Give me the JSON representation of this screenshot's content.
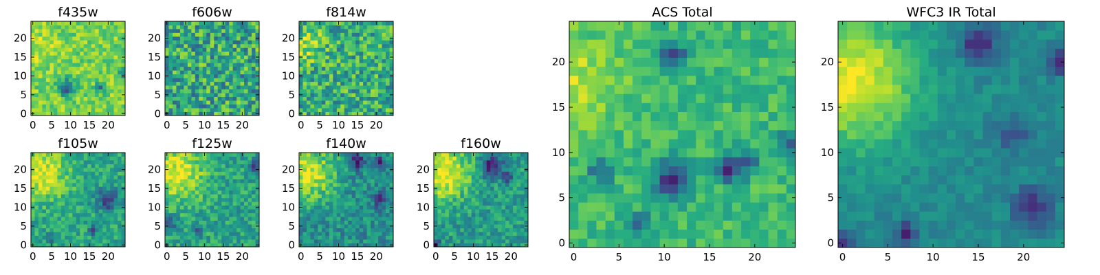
{
  "chart_data": [
    {
      "type": "heatmap",
      "title": "f435w",
      "xlabel": "",
      "ylabel": "",
      "xlim": [
        -0.5,
        24.5
      ],
      "ylim": [
        -0.5,
        24.5
      ],
      "x_ticks": [
        0,
        5,
        10,
        15,
        20
      ],
      "y_ticks": [
        0,
        5,
        10,
        15,
        20
      ],
      "grid_size": [
        25,
        25
      ],
      "grid": false,
      "colormap": "viridis",
      "color_range": [
        0,
        1
      ],
      "seed": 11,
      "base": 0.8,
      "noise": 0.28,
      "hotspots": [
        [
          1,
          18,
          4,
          0.1
        ]
      ],
      "dark_spots": [
        [
          9,
          7,
          1.5,
          0.55
        ],
        [
          18,
          7,
          1,
          0.4
        ],
        [
          24,
          11,
          1,
          0.4
        ]
      ]
    },
    {
      "type": "heatmap",
      "title": "f606w",
      "xlabel": "",
      "ylabel": "",
      "xlim": [
        -0.5,
        24.5
      ],
      "ylim": [
        -0.5,
        24.5
      ],
      "x_ticks": [
        0,
        5,
        10,
        15,
        20
      ],
      "y_ticks": [
        0,
        5,
        10,
        15,
        20
      ],
      "grid_size": [
        25,
        25
      ],
      "grid": false,
      "colormap": "viridis",
      "color_range": [
        0,
        1
      ],
      "seed": 23,
      "base": 0.6,
      "noise": 0.55,
      "hotspots": [],
      "dark_spots": []
    },
    {
      "type": "heatmap",
      "title": "f814w",
      "xlabel": "",
      "ylabel": "",
      "xlim": [
        -0.5,
        24.5
      ],
      "ylim": [
        -0.5,
        24.5
      ],
      "x_ticks": [
        0,
        5,
        10,
        15,
        20
      ],
      "y_ticks": [
        0,
        5,
        10,
        15,
        20
      ],
      "grid_size": [
        25,
        25
      ],
      "grid": false,
      "colormap": "viridis",
      "color_range": [
        0,
        1
      ],
      "seed": 37,
      "base": 0.62,
      "noise": 0.5,
      "hotspots": [
        [
          2,
          18,
          3,
          0.25
        ]
      ],
      "dark_spots": []
    },
    {
      "type": "heatmap",
      "title": "f105w",
      "xlabel": "",
      "ylabel": "",
      "xlim": [
        -0.5,
        24.5
      ],
      "ylim": [
        -0.5,
        24.5
      ],
      "x_ticks": [
        0,
        5,
        10,
        15,
        20
      ],
      "y_ticks": [
        0,
        5,
        10,
        15,
        20
      ],
      "grid_size": [
        25,
        25
      ],
      "grid": false,
      "colormap": "viridis",
      "color_range": [
        0,
        1
      ],
      "seed": 41,
      "base": 0.6,
      "noise": 0.3,
      "hotspots": [
        [
          2,
          19,
          5,
          0.35
        ]
      ],
      "dark_spots": [
        [
          20,
          12,
          2,
          0.45
        ],
        [
          16,
          4,
          1,
          0.3
        ],
        [
          5,
          2,
          1,
          0.25
        ]
      ]
    },
    {
      "type": "heatmap",
      "title": "f125w",
      "xlabel": "",
      "ylabel": "",
      "xlim": [
        -0.5,
        24.5
      ],
      "ylim": [
        -0.5,
        24.5
      ],
      "x_ticks": [
        0,
        5,
        10,
        15,
        20
      ],
      "y_ticks": [
        0,
        5,
        10,
        15,
        20
      ],
      "grid_size": [
        25,
        25
      ],
      "grid": false,
      "colormap": "viridis",
      "color_range": [
        0,
        1
      ],
      "seed": 53,
      "base": 0.58,
      "noise": 0.32,
      "hotspots": [
        [
          3,
          19,
          5,
          0.4
        ]
      ],
      "dark_spots": [
        [
          23,
          21,
          1,
          0.35
        ],
        [
          1,
          6,
          1,
          0.35
        ],
        [
          8,
          4,
          1,
          0.3
        ]
      ]
    },
    {
      "type": "heatmap",
      "title": "f140w",
      "xlabel": "",
      "ylabel": "",
      "xlim": [
        -0.5,
        24.5
      ],
      "ylim": [
        -0.5,
        24.5
      ],
      "x_ticks": [
        0,
        5,
        10,
        15,
        20
      ],
      "y_ticks": [
        0,
        5,
        10,
        15,
        20
      ],
      "grid_size": [
        25,
        25
      ],
      "grid": false,
      "colormap": "viridis",
      "color_range": [
        0,
        1
      ],
      "seed": 67,
      "base": 0.5,
      "noise": 0.32,
      "hotspots": [
        [
          2,
          19,
          5,
          0.45
        ]
      ],
      "dark_spots": [
        [
          15,
          22,
          1.5,
          0.4
        ],
        [
          21,
          22,
          1,
          0.35
        ],
        [
          21,
          12,
          1.5,
          0.3
        ]
      ]
    },
    {
      "type": "heatmap",
      "title": "f160w",
      "xlabel": "",
      "ylabel": "",
      "xlim": [
        -0.5,
        24.5
      ],
      "ylim": [
        -0.5,
        24.5
      ],
      "x_ticks": [
        0,
        5,
        10,
        15,
        20
      ],
      "y_ticks": [
        0,
        5,
        10,
        15,
        20
      ],
      "grid_size": [
        25,
        25
      ],
      "grid": false,
      "colormap": "viridis",
      "color_range": [
        0,
        1
      ],
      "seed": 79,
      "base": 0.55,
      "noise": 0.3,
      "hotspots": [
        [
          2,
          19,
          5,
          0.45
        ]
      ],
      "dark_spots": [
        [
          15,
          21,
          2,
          0.5
        ],
        [
          19,
          18,
          1,
          0.35
        ],
        [
          0,
          0,
          1,
          0.4
        ]
      ]
    },
    {
      "type": "heatmap",
      "title": "ACS Total",
      "xlabel": "",
      "ylabel": "",
      "xlim": [
        -0.5,
        24.5
      ],
      "ylim": [
        -0.5,
        24.5
      ],
      "x_ticks": [
        0,
        5,
        10,
        15,
        20
      ],
      "y_ticks": [
        0,
        5,
        10,
        15,
        20
      ],
      "grid_size": [
        25,
        25
      ],
      "grid": false,
      "colormap": "viridis",
      "color_range": [
        0,
        1
      ],
      "seed": 97,
      "base": 0.68,
      "noise": 0.22,
      "hotspots": [
        [
          0,
          18,
          4,
          0.2
        ]
      ],
      "dark_spots": [
        [
          11,
          7,
          1.5,
          0.55
        ],
        [
          17,
          8,
          1,
          0.45
        ],
        [
          19,
          9,
          1,
          0.4
        ],
        [
          11,
          21,
          1,
          0.45
        ],
        [
          7,
          2,
          1,
          0.4
        ],
        [
          24,
          11,
          1,
          0.35
        ],
        [
          3,
          8,
          1,
          0.35
        ]
      ]
    },
    {
      "type": "heatmap",
      "title": "WFC3 IR Total",
      "xlabel": "",
      "ylabel": "",
      "xlim": [
        -0.5,
        24.5
      ],
      "ylim": [
        -0.5,
        24.5
      ],
      "x_ticks": [
        0,
        5,
        10,
        15,
        20
      ],
      "y_ticks": [
        0,
        5,
        10,
        15,
        20
      ],
      "grid_size": [
        25,
        25
      ],
      "grid": false,
      "colormap": "viridis",
      "color_range": [
        0,
        1
      ],
      "seed": 113,
      "base": 0.48,
      "noise": 0.14,
      "hotspots": [
        [
          1,
          18,
          5,
          0.5
        ]
      ],
      "dark_spots": [
        [
          15,
          22,
          1.5,
          0.35
        ],
        [
          21,
          4,
          1.5,
          0.35
        ],
        [
          7,
          1,
          1,
          0.35
        ],
        [
          24,
          20,
          1,
          0.35
        ],
        [
          19,
          12,
          1.5,
          0.2
        ],
        [
          0,
          0,
          1,
          0.35
        ]
      ]
    }
  ]
}
